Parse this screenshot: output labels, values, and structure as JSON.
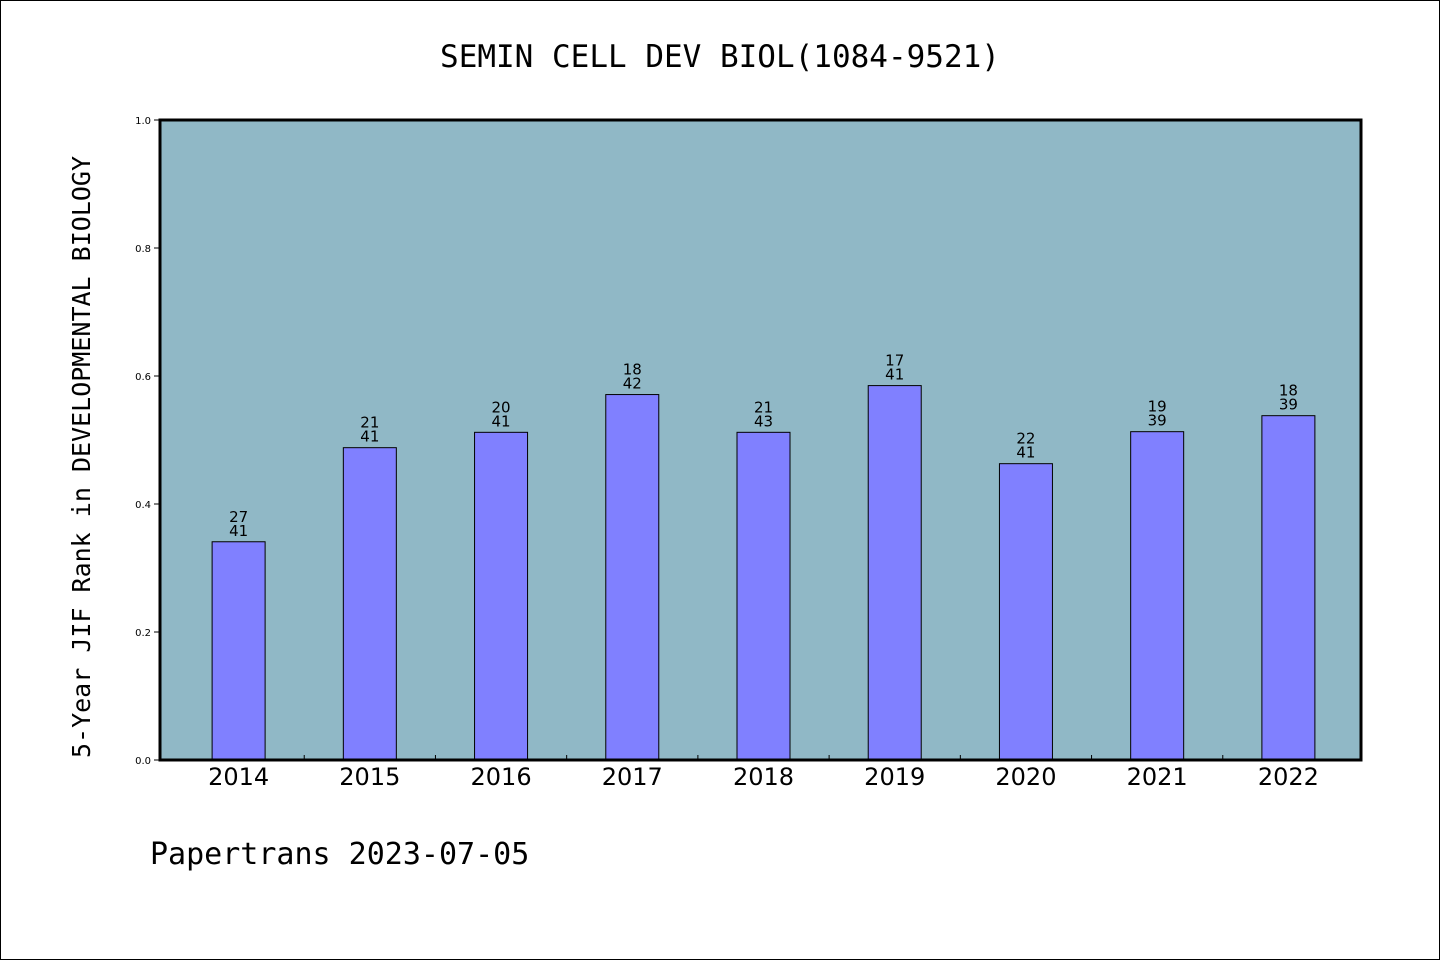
{
  "chart_data": {
    "type": "bar",
    "title": "SEMIN CELL DEV BIOL(1084-9521)",
    "ylabel": "5-Year JIF Rank in DEVELOPMENTAL BIOLOGY",
    "xlabel": "",
    "ylim": [
      0,
      1.0
    ],
    "yticks": [
      "0.0",
      "0.2",
      "0.4",
      "0.6",
      "0.8",
      "1.0"
    ],
    "categories": [
      "2014",
      "2015",
      "2016",
      "2017",
      "2018",
      "2019",
      "2020",
      "2021",
      "2022"
    ],
    "values": [
      0.341,
      0.488,
      0.512,
      0.571,
      0.512,
      0.585,
      0.463,
      0.513,
      0.538
    ],
    "ranks": [
      "27",
      "21",
      "20",
      "18",
      "21",
      "17",
      "22",
      "19",
      "18"
    ],
    "totals": [
      "41",
      "41",
      "41",
      "42",
      "43",
      "41",
      "41",
      "39",
      "39"
    ],
    "grid": false,
    "colors": {
      "plot_bg": "#90b8c6",
      "bar": "#8080ff"
    }
  },
  "footer": "Papertrans 2023-07-05"
}
